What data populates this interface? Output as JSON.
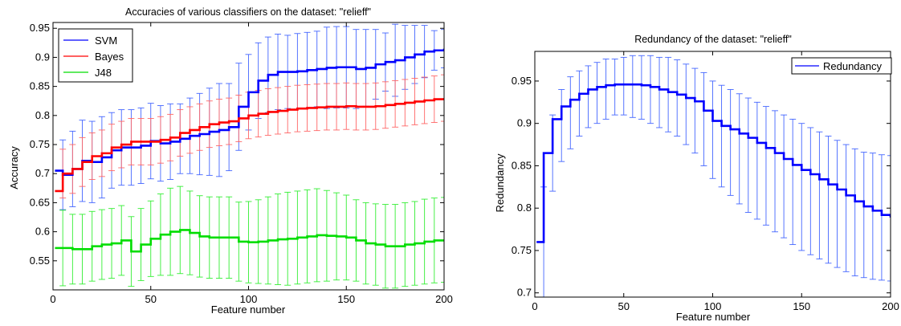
{
  "chart_data": [
    {
      "type": "line",
      "title": "Accuracies of various classifiers on the dataset: \"relieff\"",
      "xlabel": "Feature number",
      "ylabel": "Accuracy",
      "xlim": [
        0,
        200
      ],
      "ylim": [
        0.5,
        0.96
      ],
      "xticks": [
        0,
        50,
        100,
        150,
        200
      ],
      "xtick_labels": [
        "0",
        "50",
        "100",
        "150",
        "200"
      ],
      "yticks": [
        0.55,
        0.6,
        0.65,
        0.7,
        0.75,
        0.8,
        0.85,
        0.9,
        0.95
      ],
      "ytick_labels": [
        "0.55",
        "0.6",
        "0.65",
        "0.7",
        "0.75",
        "0.8",
        "0.85",
        "0.9",
        "0.95"
      ],
      "grid": false,
      "legend_position": "top-left",
      "error_bar_step": 5,
      "series": [
        {
          "name": "SVM",
          "color": "#0000ff",
          "x": [
            1,
            5,
            10,
            15,
            20,
            25,
            30,
            35,
            40,
            45,
            50,
            55,
            60,
            65,
            70,
            75,
            80,
            85,
            90,
            95,
            100,
            105,
            110,
            115,
            120,
            125,
            130,
            135,
            140,
            145,
            150,
            155,
            160,
            165,
            170,
            175,
            180,
            185,
            190,
            195,
            200
          ],
          "y": [
            0.705,
            0.698,
            0.708,
            0.722,
            0.72,
            0.728,
            0.74,
            0.745,
            0.745,
            0.748,
            0.756,
            0.752,
            0.755,
            0.76,
            0.765,
            0.768,
            0.772,
            0.775,
            0.78,
            0.815,
            0.84,
            0.86,
            0.87,
            0.875,
            0.875,
            0.876,
            0.878,
            0.88,
            0.882,
            0.883,
            0.883,
            0.88,
            0.882,
            0.888,
            0.892,
            0.895,
            0.9,
            0.905,
            0.91,
            0.912,
            0.915
          ],
          "err": [
            0.055,
            0.06,
            0.065,
            0.07,
            0.07,
            0.07,
            0.065,
            0.065,
            0.065,
            0.065,
            0.065,
            0.065,
            0.065,
            0.06,
            0.065,
            0.07,
            0.075,
            0.08,
            0.075,
            0.075,
            0.065,
            0.065,
            0.065,
            0.065,
            0.063,
            0.065,
            0.065,
            0.065,
            0.07,
            0.07,
            0.07,
            0.068,
            0.066,
            0.06,
            0.05,
            0.062,
            0.055,
            0.05,
            0.045,
            0.034,
            0.033
          ]
        },
        {
          "name": "Bayes",
          "color": "#ff0000",
          "x": [
            1,
            5,
            10,
            15,
            20,
            25,
            30,
            35,
            40,
            45,
            50,
            55,
            60,
            65,
            70,
            75,
            80,
            85,
            90,
            95,
            100,
            105,
            110,
            115,
            120,
            125,
            130,
            135,
            140,
            145,
            150,
            155,
            160,
            165,
            170,
            175,
            180,
            185,
            190,
            195,
            200
          ],
          "y": [
            0.67,
            0.7,
            0.708,
            0.72,
            0.73,
            0.735,
            0.745,
            0.75,
            0.755,
            0.755,
            0.755,
            0.758,
            0.762,
            0.77,
            0.775,
            0.78,
            0.785,
            0.788,
            0.79,
            0.795,
            0.8,
            0.803,
            0.806,
            0.808,
            0.81,
            0.812,
            0.813,
            0.814,
            0.815,
            0.815,
            0.816,
            0.815,
            0.815,
            0.816,
            0.818,
            0.82,
            0.822,
            0.824,
            0.826,
            0.828,
            0.83
          ],
          "err": [
            0.048,
            0.042,
            0.042,
            0.042,
            0.04,
            0.04,
            0.04,
            0.04,
            0.04,
            0.04,
            0.04,
            0.04,
            0.04,
            0.04,
            0.04,
            0.04,
            0.04,
            0.04,
            0.04,
            0.04,
            0.04,
            0.04,
            0.04,
            0.04,
            0.04,
            0.04,
            0.04,
            0.04,
            0.04,
            0.04,
            0.04,
            0.04,
            0.04,
            0.04,
            0.04,
            0.04,
            0.04,
            0.04,
            0.04,
            0.04,
            0.04
          ]
        },
        {
          "name": "J48",
          "color": "#00dd00",
          "x": [
            1,
            5,
            10,
            15,
            20,
            25,
            30,
            35,
            40,
            45,
            50,
            55,
            60,
            65,
            70,
            75,
            80,
            85,
            90,
            95,
            100,
            105,
            110,
            115,
            120,
            125,
            130,
            135,
            140,
            145,
            150,
            155,
            160,
            165,
            170,
            175,
            180,
            185,
            190,
            195,
            200
          ],
          "y": [
            0.572,
            0.572,
            0.57,
            0.57,
            0.575,
            0.578,
            0.58,
            0.585,
            0.566,
            0.578,
            0.588,
            0.595,
            0.6,
            0.603,
            0.598,
            0.592,
            0.59,
            0.59,
            0.59,
            0.583,
            0.582,
            0.583,
            0.585,
            0.587,
            0.588,
            0.59,
            0.592,
            0.594,
            0.593,
            0.592,
            0.59,
            0.585,
            0.58,
            0.578,
            0.575,
            0.575,
            0.578,
            0.58,
            0.583,
            0.585,
            0.586
          ],
          "err": [
            0.07,
            0.065,
            0.06,
            0.06,
            0.06,
            0.06,
            0.06,
            0.06,
            0.06,
            0.062,
            0.065,
            0.07,
            0.075,
            0.075,
            0.072,
            0.07,
            0.07,
            0.07,
            0.07,
            0.068,
            0.07,
            0.072,
            0.075,
            0.078,
            0.08,
            0.08,
            0.08,
            0.08,
            0.078,
            0.075,
            0.073,
            0.07,
            0.07,
            0.07,
            0.072,
            0.072,
            0.072,
            0.072,
            0.073,
            0.073,
            0.073
          ]
        }
      ]
    },
    {
      "type": "line",
      "title": "Redundancy of the dataset: \"relieff\"",
      "xlabel": "Feature number",
      "ylabel": "Redundancy",
      "xlim": [
        0,
        200
      ],
      "ylim": [
        0.695,
        0.985
      ],
      "xticks": [
        0,
        50,
        100,
        150,
        200
      ],
      "xtick_labels": [
        "0",
        "50",
        "100",
        "150",
        "200"
      ],
      "yticks": [
        0.7,
        0.75,
        0.8,
        0.85,
        0.9,
        0.95
      ],
      "ytick_labels": [
        "0.7",
        "0.75",
        "0.8",
        "0.85",
        "0.9",
        "0.95"
      ],
      "grid": false,
      "legend_position": "top-right",
      "error_bar_step": 5,
      "series": [
        {
          "name": "Redundancy",
          "color": "#0000ff",
          "x": [
            1,
            5,
            10,
            15,
            20,
            25,
            30,
            35,
            40,
            45,
            50,
            55,
            60,
            65,
            70,
            75,
            80,
            85,
            90,
            95,
            100,
            105,
            110,
            115,
            120,
            125,
            130,
            135,
            140,
            145,
            150,
            155,
            160,
            165,
            170,
            175,
            180,
            185,
            190,
            195,
            200
          ],
          "y": [
            0.76,
            0.865,
            0.905,
            0.92,
            0.928,
            0.935,
            0.94,
            0.943,
            0.945,
            0.946,
            0.946,
            0.946,
            0.945,
            0.943,
            0.94,
            0.937,
            0.934,
            0.93,
            0.926,
            0.915,
            0.903,
            0.897,
            0.893,
            0.888,
            0.883,
            0.877,
            0.871,
            0.865,
            0.858,
            0.851,
            0.845,
            0.84,
            0.834,
            0.828,
            0.822,
            0.815,
            0.808,
            0.802,
            0.797,
            0.792,
            0.789
          ]
        }
      ],
      "error_bars": {
        "x": [
          5,
          10,
          15,
          20,
          25,
          30,
          35,
          40,
          45,
          50,
          55,
          60,
          65,
          70,
          75,
          80,
          85,
          90,
          95,
          100,
          105,
          110,
          115,
          120,
          125,
          130,
          135,
          140,
          145,
          150,
          155,
          160,
          165,
          170,
          175,
          180,
          185,
          190,
          195,
          200
        ],
        "low": [
          0.69,
          0.82,
          0.855,
          0.87,
          0.885,
          0.895,
          0.9,
          0.905,
          0.91,
          0.91,
          0.907,
          0.905,
          0.9,
          0.895,
          0.89,
          0.885,
          0.875,
          0.865,
          0.85,
          0.835,
          0.825,
          0.815,
          0.805,
          0.795,
          0.787,
          0.78,
          0.772,
          0.765,
          0.757,
          0.75,
          0.745,
          0.74,
          0.735,
          0.73,
          0.725,
          0.72,
          0.718,
          0.716,
          0.715,
          0.714
        ],
        "high": [
          0.825,
          0.91,
          0.94,
          0.955,
          0.962,
          0.968,
          0.972,
          0.976,
          0.976,
          0.978,
          0.98,
          0.98,
          0.98,
          0.978,
          0.978,
          0.975,
          0.97,
          0.965,
          0.96,
          0.95,
          0.945,
          0.94,
          0.935,
          0.93,
          0.925,
          0.92,
          0.915,
          0.91,
          0.905,
          0.9,
          0.895,
          0.89,
          0.885,
          0.88,
          0.875,
          0.87,
          0.866,
          0.865,
          0.863,
          0.862
        ]
      }
    }
  ]
}
